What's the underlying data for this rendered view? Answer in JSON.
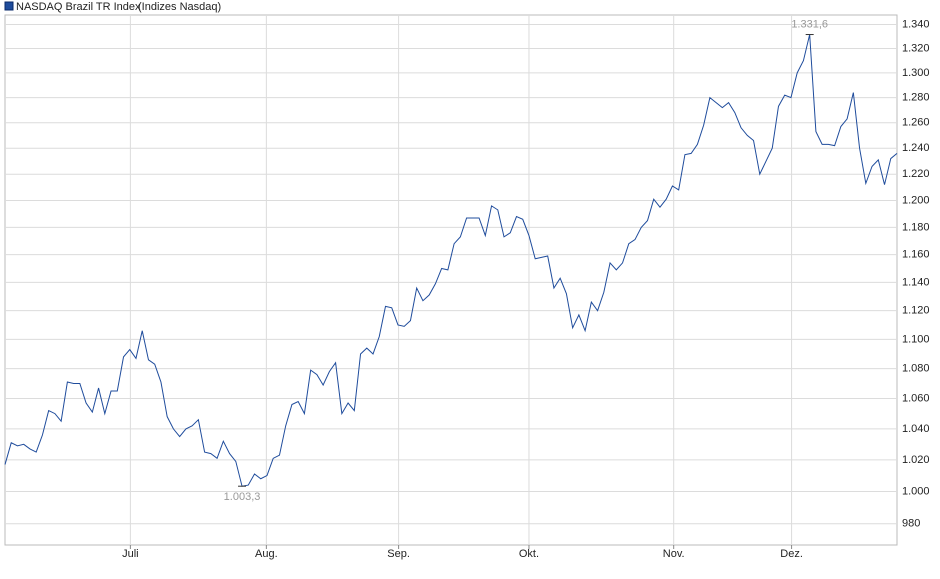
{
  "chart_data": {
    "type": "line",
    "series": [
      {
        "name": "NASDAQ Brazil TR Index",
        "color": "#1f4c9c",
        "values": [
          1017,
          1031,
          1029,
          1030,
          1027,
          1025,
          1036,
          1052,
          1050,
          1045,
          1071,
          1070,
          1070,
          1057,
          1051,
          1067,
          1050,
          1065,
          1065,
          1088,
          1093,
          1087,
          1106,
          1086,
          1083,
          1071,
          1048,
          1040,
          1035,
          1040,
          1042,
          1046,
          1025,
          1024,
          1021,
          1032,
          1024,
          1019,
          1003.3,
          1004,
          1011,
          1008,
          1010,
          1021,
          1023,
          1042,
          1056,
          1058,
          1050,
          1079,
          1076,
          1069,
          1078,
          1084,
          1050,
          1057,
          1052,
          1090,
          1094,
          1090,
          1102,
          1123,
          1122,
          1110,
          1109,
          1113,
          1136,
          1127,
          1131,
          1139,
          1150,
          1149,
          1168,
          1173,
          1187,
          1187,
          1187,
          1174,
          1196,
          1193,
          1173,
          1176,
          1188,
          1186,
          1174,
          1157,
          1158,
          1159,
          1136,
          1143,
          1132,
          1108,
          1117,
          1106,
          1126,
          1120,
          1133,
          1154,
          1149,
          1154,
          1168,
          1171,
          1180,
          1185,
          1201,
          1195,
          1201,
          1211,
          1208,
          1235,
          1236,
          1243,
          1258,
          1280,
          1276,
          1272,
          1276,
          1268,
          1256,
          1250,
          1246,
          1220,
          1230,
          1240,
          1273,
          1282,
          1280,
          1300,
          1310,
          1331.6,
          1253,
          1243,
          1243,
          1242,
          1257,
          1263,
          1284,
          1240,
          1213,
          1226,
          1231,
          1212,
          1232,
          1236
        ],
        "value_labels": [
          null,
          null,
          null,
          null,
          null,
          null,
          null,
          null,
          null,
          null,
          null,
          null,
          null,
          null,
          null,
          null,
          null,
          null,
          null,
          null,
          null,
          null,
          null,
          null,
          null,
          null,
          null,
          null,
          null,
          null,
          null,
          null,
          null,
          null,
          null,
          null,
          null,
          null,
          "1.003,3",
          null,
          null,
          null,
          null,
          null,
          null,
          null,
          null,
          null,
          null,
          null,
          null,
          null,
          null,
          null,
          null,
          null,
          null,
          null,
          null,
          null,
          null,
          null,
          null,
          null,
          null,
          null,
          null,
          null,
          null,
          null,
          null,
          null,
          null,
          null,
          null,
          null,
          null,
          null,
          null,
          null,
          null,
          null,
          null,
          null,
          null,
          null,
          null,
          null,
          null,
          null,
          null,
          null,
          null,
          null,
          null,
          null,
          null,
          null,
          null,
          null,
          null,
          null,
          null,
          null,
          null,
          null,
          null,
          null,
          null,
          null,
          null,
          null,
          null,
          null,
          null,
          null,
          null,
          null,
          null,
          null,
          null,
          null,
          null,
          null,
          null,
          null,
          null,
          null,
          null,
          "1.331,6",
          null,
          null,
          null,
          null,
          null,
          null,
          null,
          null,
          null,
          null,
          null,
          null,
          null,
          null
        ]
      }
    ],
    "source": "(Indizes Nasdaq)",
    "xlim": [
      0,
      143
    ],
    "xticks": [
      {
        "value": 20.1,
        "label": "Juli"
      },
      {
        "value": 41.9,
        "label": "Aug."
      },
      {
        "value": 63.1,
        "label": "Sep."
      },
      {
        "value": 84.0,
        "label": "Okt."
      },
      {
        "value": 107.2,
        "label": "Nov."
      },
      {
        "value": 126.1,
        "label": "Dez."
      }
    ],
    "ylim": [
      967,
      1348
    ],
    "log_scale": true,
    "grid": true,
    "yticks": [
      980,
      {
        "value": 1000,
        "label": "1.000"
      },
      {
        "value": 1020,
        "label": "1.020"
      },
      {
        "value": 1040,
        "label": "1.040"
      },
      {
        "value": 1060,
        "label": "1.060"
      },
      {
        "value": 1080,
        "label": "1.080"
      },
      {
        "value": 1100,
        "label": "1.100"
      },
      {
        "value": 1120,
        "label": "1.120"
      },
      {
        "value": 1140,
        "label": "1.140"
      },
      {
        "value": 1160,
        "label": "1.160"
      },
      {
        "value": 1180,
        "label": "1.180"
      },
      {
        "value": 1200,
        "label": "1.200"
      },
      {
        "value": 1220,
        "label": "1.220"
      },
      {
        "value": 1240,
        "label": "1.240"
      },
      {
        "value": 1260,
        "label": "1.260"
      },
      {
        "value": 1280,
        "label": "1.280"
      },
      {
        "value": 1300,
        "label": "1.300"
      },
      {
        "value": 1320,
        "label": "1.320"
      },
      {
        "value": 1340,
        "label": "1.340"
      }
    ]
  }
}
